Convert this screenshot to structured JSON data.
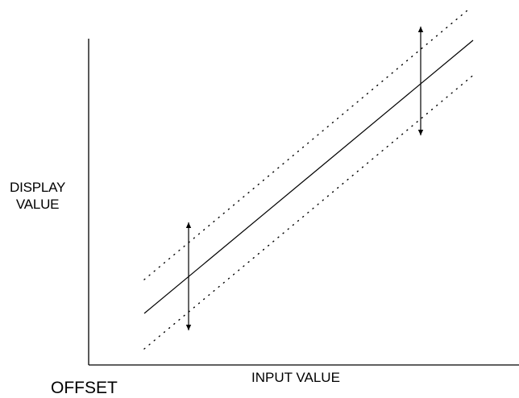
{
  "labels": {
    "y_axis_line1": "DISPLAY",
    "y_axis_line2": "VALUE",
    "x_axis": "INPUT VALUE",
    "offset": "OFFSET"
  },
  "colors": {
    "ink": "#000000",
    "background": "#ffffff"
  }
}
